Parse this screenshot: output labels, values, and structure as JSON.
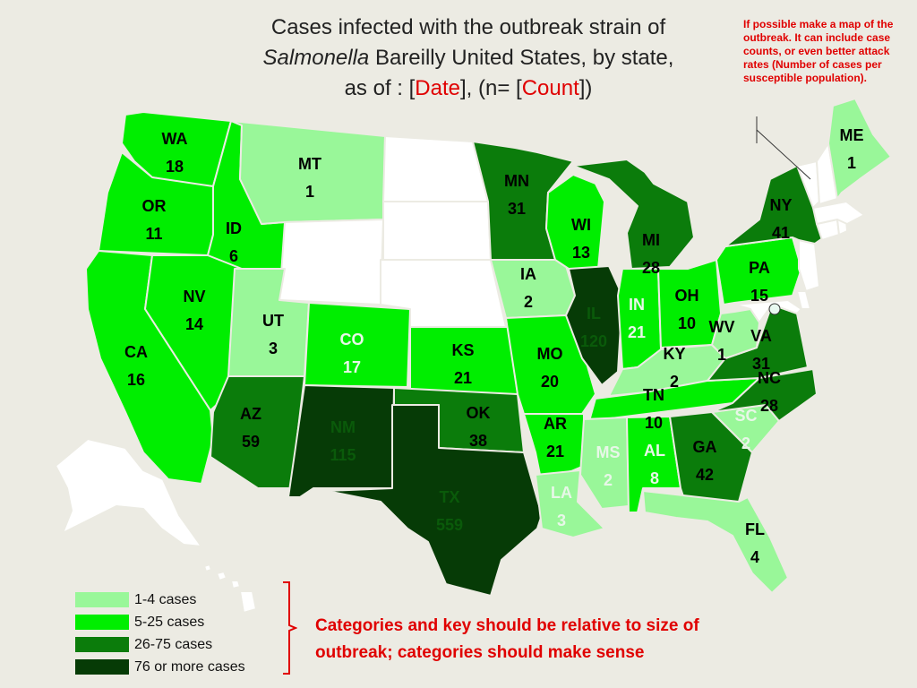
{
  "title": {
    "line1": "Cases infected with the outbreak strain of",
    "line2_italic": "Salmonella",
    "line2_rest": " Bareilly United States, by state,",
    "line3_prefix": "as of : [",
    "date_placeholder": "Date",
    "line3_mid": "], (n= [",
    "count_placeholder": "Count",
    "line3_suffix": "])"
  },
  "note_top": "If possible make a map of the outbreak.  It can include case counts, or even better attack rates (Number of cases per susceptible population).",
  "note_bottom": "Categories and key should be relative to size of outbreak; categories should make sense",
  "legend": [
    {
      "label": "1-4 cases",
      "color": "#99f799"
    },
    {
      "label": "5-25 cases",
      "color": "#00ee00"
    },
    {
      "label": "26-75 cases",
      "color": "#0b7c0b"
    },
    {
      "label": "76 or more cases",
      "color": "#063b06"
    }
  ],
  "colors": {
    "no_cases": "#ffffff",
    "cat1": "#99f799",
    "cat2": "#00ee00",
    "cat3": "#0b7c0b",
    "cat4": "#063b06",
    "annotation_red": "#e00000"
  },
  "states": [
    {
      "abbr": "WA",
      "count": "18",
      "category": "cat2"
    },
    {
      "abbr": "OR",
      "count": "11",
      "category": "cat2"
    },
    {
      "abbr": "CA",
      "count": "16",
      "category": "cat2"
    },
    {
      "abbr": "ID",
      "count": "6",
      "category": "cat2"
    },
    {
      "abbr": "NV",
      "count": "14",
      "category": "cat2"
    },
    {
      "abbr": "MT",
      "count": "1",
      "category": "cat1"
    },
    {
      "abbr": "UT",
      "count": "3",
      "category": "cat1"
    },
    {
      "abbr": "AZ",
      "count": "59",
      "category": "cat3"
    },
    {
      "abbr": "CO",
      "count": "17",
      "category": "cat2"
    },
    {
      "abbr": "NM",
      "count": "115",
      "category": "cat4"
    },
    {
      "abbr": "TX",
      "count": "559",
      "category": "cat4"
    },
    {
      "abbr": "OK",
      "count": "38",
      "category": "cat3"
    },
    {
      "abbr": "KS",
      "count": "21",
      "category": "cat2"
    },
    {
      "abbr": "MN",
      "count": "31",
      "category": "cat3"
    },
    {
      "abbr": "IA",
      "count": "2",
      "category": "cat1"
    },
    {
      "abbr": "MO",
      "count": "20",
      "category": "cat2"
    },
    {
      "abbr": "AR",
      "count": "21",
      "category": "cat2"
    },
    {
      "abbr": "LA",
      "count": "3",
      "category": "cat1"
    },
    {
      "abbr": "WI",
      "count": "13",
      "category": "cat2"
    },
    {
      "abbr": "IL",
      "count": "120",
      "category": "cat4"
    },
    {
      "abbr": "MI",
      "count": "28",
      "category": "cat3"
    },
    {
      "abbr": "IN",
      "count": "21",
      "category": "cat2"
    },
    {
      "abbr": "OH",
      "count": "10",
      "category": "cat2"
    },
    {
      "abbr": "KY",
      "count": "2",
      "category": "cat1"
    },
    {
      "abbr": "TN",
      "count": "10",
      "category": "cat2"
    },
    {
      "abbr": "MS",
      "count": "2",
      "category": "cat1"
    },
    {
      "abbr": "AL",
      "count": "8",
      "category": "cat2"
    },
    {
      "abbr": "GA",
      "count": "42",
      "category": "cat3"
    },
    {
      "abbr": "FL",
      "count": "4",
      "category": "cat1"
    },
    {
      "abbr": "SC",
      "count": "2",
      "category": "cat1"
    },
    {
      "abbr": "NC",
      "count": "28",
      "category": "cat3"
    },
    {
      "abbr": "VA",
      "count": "31",
      "category": "cat3"
    },
    {
      "abbr": "WV",
      "count": "1",
      "category": "cat1"
    },
    {
      "abbr": "PA",
      "count": "15",
      "category": "cat2"
    },
    {
      "abbr": "NY",
      "count": "41",
      "category": "cat3"
    },
    {
      "abbr": "ME",
      "count": "1",
      "category": "cat1"
    }
  ]
}
